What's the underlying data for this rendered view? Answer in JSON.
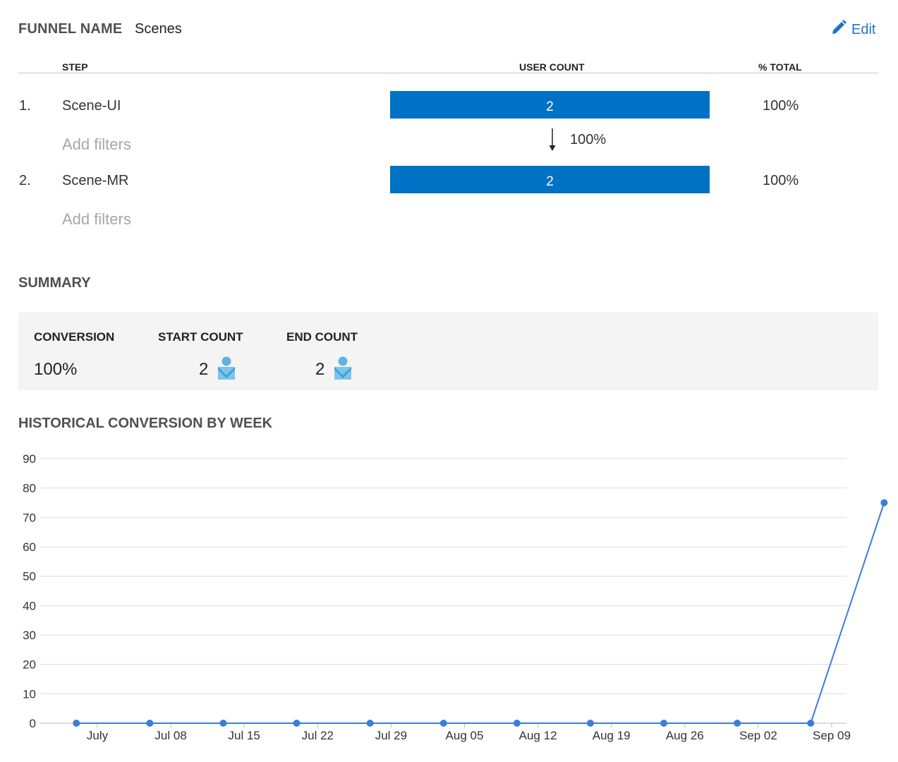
{
  "header": {
    "funnel_name_label": "FUNNEL NAME",
    "funnel_name_value": "Scenes",
    "edit_label": "Edit",
    "edit_icon": "pencil-icon"
  },
  "table": {
    "columns": [
      "STEP",
      "USER COUNT",
      "% TOTAL"
    ],
    "steps": [
      {
        "number": "1.",
        "name": "Scene-UI",
        "count": "2",
        "percent_total": "100%",
        "add_filters": "Add filters"
      },
      {
        "number": "2.",
        "name": "Scene-MR",
        "count": "2",
        "percent_total": "100%",
        "add_filters": "Add filters"
      }
    ],
    "step_conversion": "100%",
    "bar_color": "#0072c6"
  },
  "summary": {
    "title": "SUMMARY",
    "conversion_label": "CONVERSION",
    "conversion_value": "100%",
    "start_count_label": "START COUNT",
    "start_count_value": "2",
    "end_count_label": "END COUNT",
    "end_count_value": "2",
    "user_icon": "user-icon"
  },
  "history": {
    "title": "HISTORICAL CONVERSION BY WEEK"
  },
  "chart_data": {
    "type": "line",
    "title": "",
    "xlabel": "",
    "ylabel": "",
    "x_tick_labels": [
      "July",
      "Jul 08",
      "Jul 15",
      "Jul 22",
      "Jul 29",
      "Aug 05",
      "Aug 12",
      "Aug 19",
      "Aug 26",
      "Sep 02",
      "Sep 09"
    ],
    "y_ticks": [
      0,
      10,
      20,
      30,
      40,
      50,
      60,
      70,
      80,
      90
    ],
    "ylim": [
      0,
      90
    ],
    "grid": true,
    "series": [
      {
        "color": "#3b7dd8",
        "x": [
          "2019-06-28",
          "2019-07-05",
          "2019-07-12",
          "2019-07-19",
          "2019-07-26",
          "2019-08-02",
          "2019-08-09",
          "2019-08-16",
          "2019-08-23",
          "2019-08-30",
          "2019-09-06",
          "2019-09-13"
        ],
        "values": [
          0,
          0,
          0,
          0,
          0,
          0,
          0,
          0,
          0,
          0,
          0,
          75
        ]
      }
    ]
  }
}
